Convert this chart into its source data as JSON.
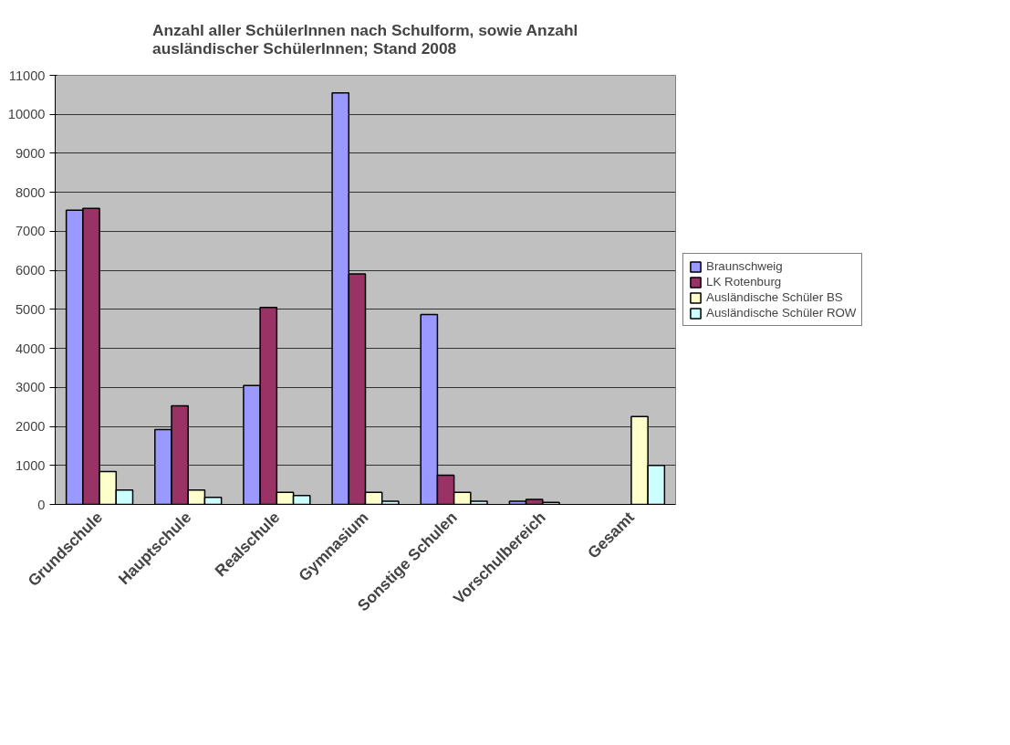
{
  "chart_data": {
    "type": "bar",
    "title": "Anzahl aller SchülerInnen nach Schulform, sowie Anzahl ausländischer SchülerInnen; Stand 2008",
    "categories": [
      "Grundschule",
      "Hauptschule",
      "Realschule",
      "Gymnasium",
      "Sonstige Schulen",
      "Vorschulbereich",
      "Gesamt"
    ],
    "series": [
      {
        "name": "Braunschweig",
        "color": "#9999ff",
        "values": [
          7540,
          1920,
          3050,
          10550,
          4870,
          80,
          null
        ]
      },
      {
        "name": "LK Rotenburg",
        "color": "#993366",
        "values": [
          7590,
          2530,
          5050,
          5910,
          750,
          130,
          null
        ]
      },
      {
        "name": "Ausländische Schüler BS",
        "color": "#ffffcc",
        "values": [
          840,
          370,
          310,
          310,
          310,
          50,
          2250
        ]
      },
      {
        "name": "Ausländische Schüler ROW",
        "color": "#ccffff",
        "values": [
          370,
          180,
          230,
          80,
          80,
          null,
          1000
        ]
      }
    ],
    "ylim": [
      0,
      11000
    ],
    "yticks": [
      0,
      1000,
      2000,
      3000,
      4000,
      5000,
      6000,
      7000,
      8000,
      9000,
      10000,
      11000
    ],
    "grid": "y",
    "legend": "right"
  }
}
